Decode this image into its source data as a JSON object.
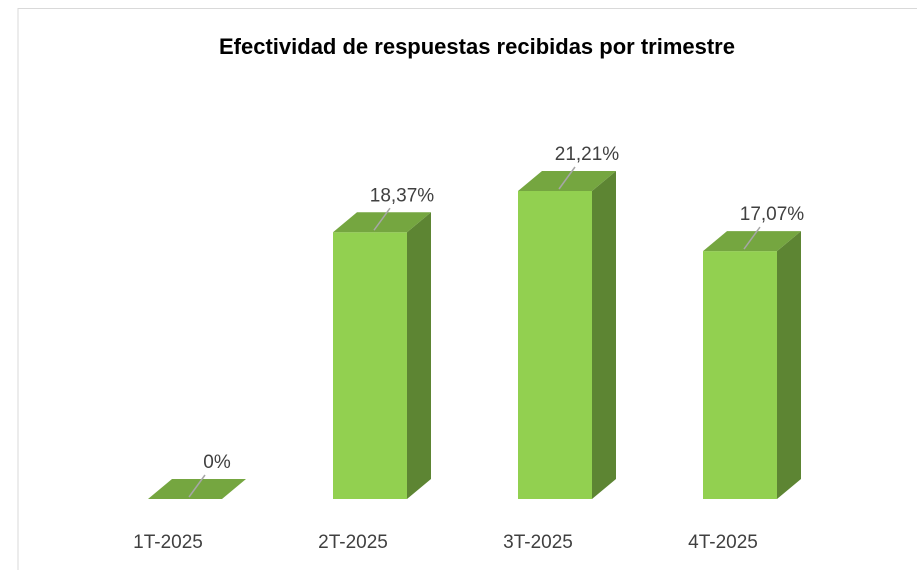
{
  "chart_data": {
    "type": "bar3d",
    "title": "Efectividad de respuestas recibidas por trimestre",
    "categories": [
      "1T-2025",
      "2T-2025",
      "3T-2025",
      "4T-2025"
    ],
    "values": [
      0,
      18.37,
      21.21,
      17.07
    ],
    "value_labels": [
      "0%",
      "18,37%",
      "21,21%",
      "17,07%"
    ],
    "color": "#92d050"
  }
}
